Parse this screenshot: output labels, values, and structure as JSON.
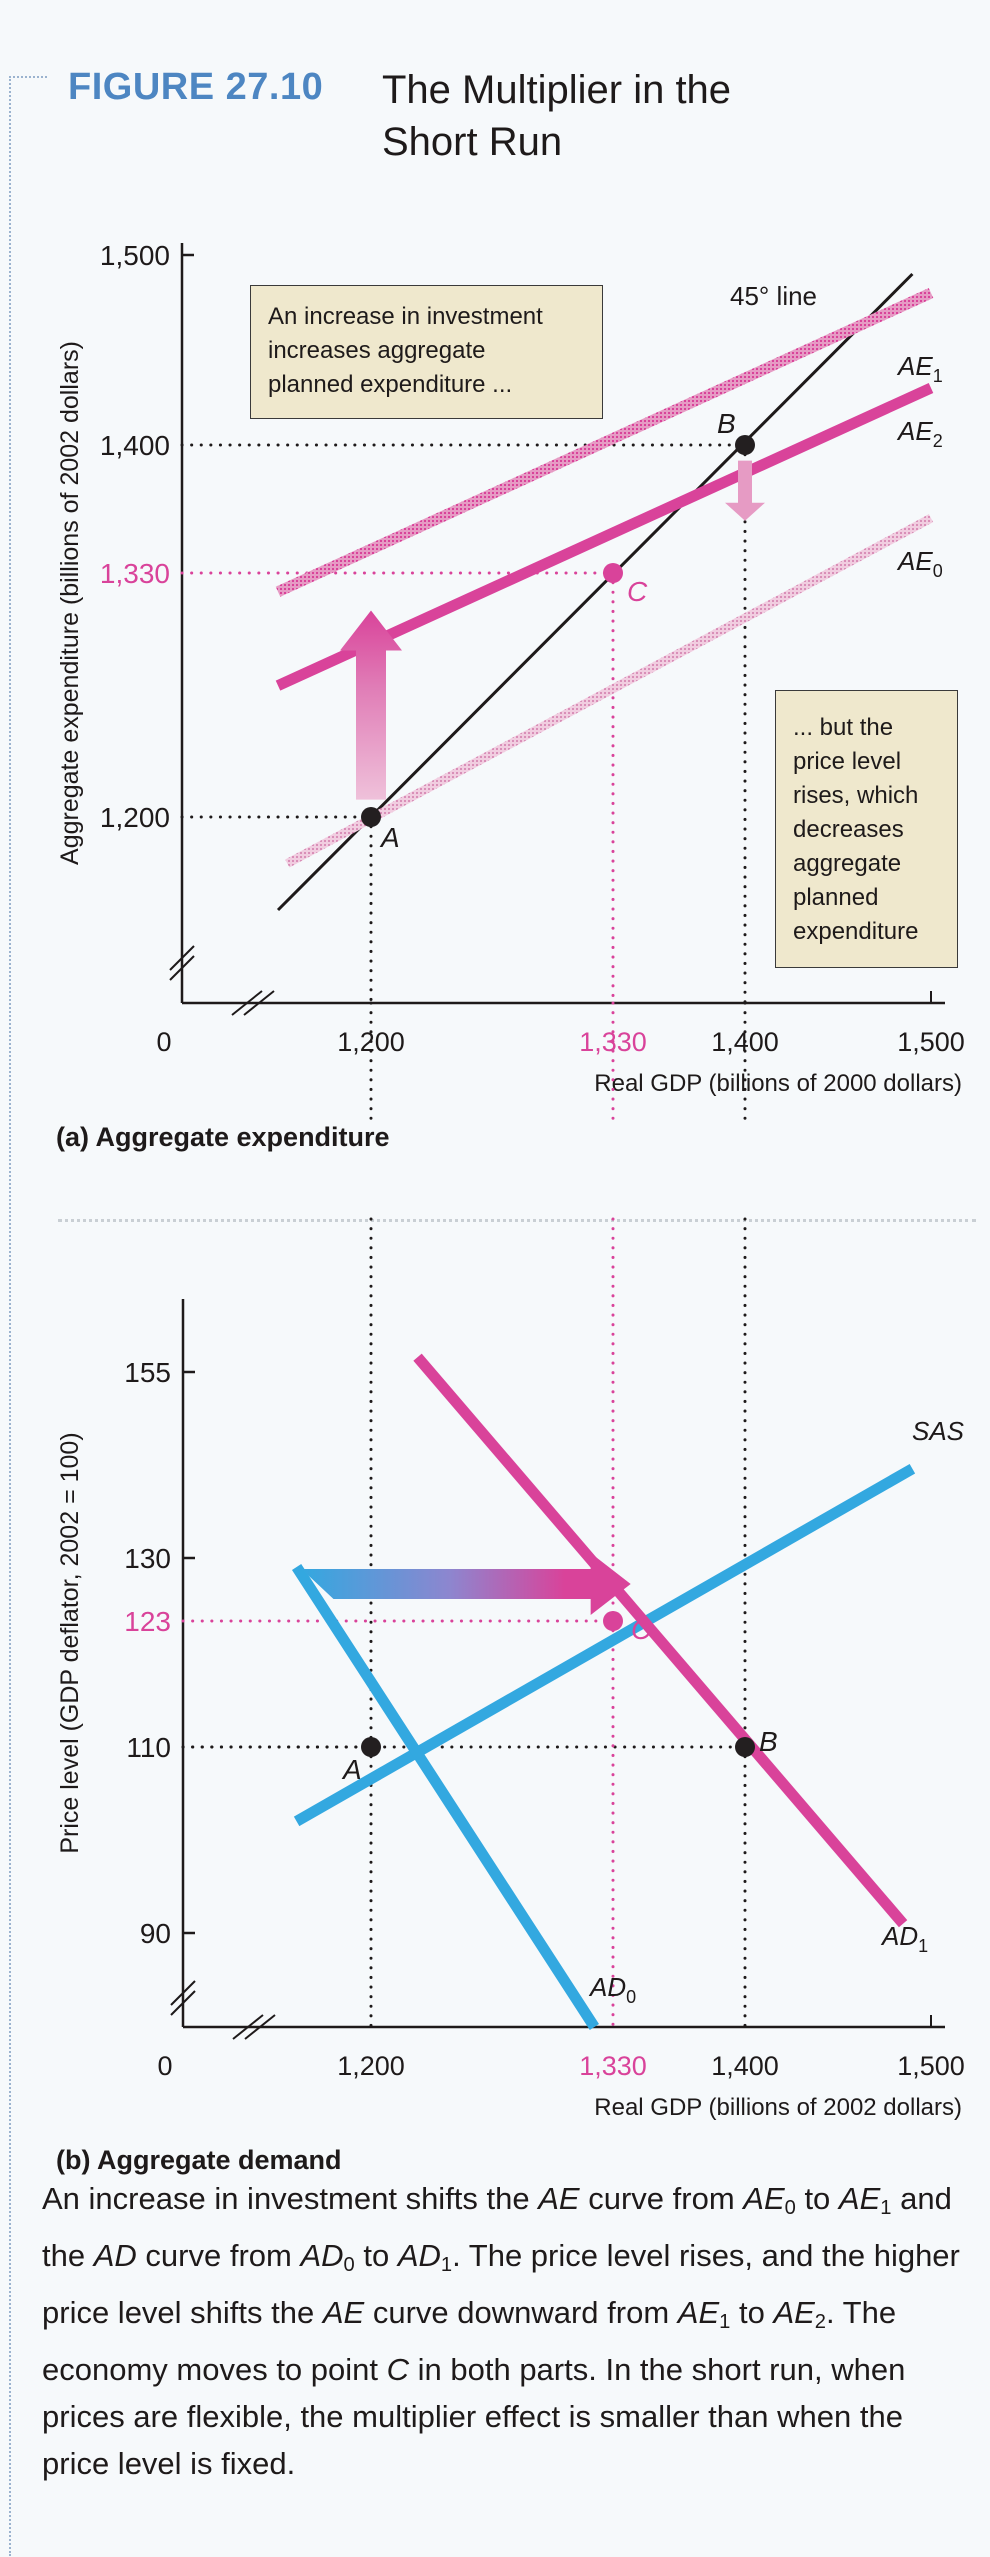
{
  "figure": {
    "number": "FIGURE 27.10",
    "title": "The Multiplier in the Short Run",
    "title_line1": "The Multiplier in the",
    "title_line2": "Short Run",
    "colors": {
      "number": "#4d86c2",
      "magenta": "#d9439a",
      "magenta_light": "#e69bc4",
      "magenta_pale": "#eab8d3",
      "blue": "#33a8e0",
      "black": "#1e1a1a",
      "note_bg": "#efe8cd"
    }
  },
  "chart_data": [
    {
      "id": "panel-a",
      "type": "line",
      "panel_label": "(a) Aggregate expenditure",
      "xlabel": "Real GDP (billions of 2000 dollars)",
      "ylabel": "Aggregate expenditure (billions of 2002 dollars)",
      "xlim": [
        1150,
        1500
      ],
      "ylim": [
        1150,
        1500
      ],
      "axis_breaks": true,
      "origin_label": "0",
      "x_ticks": [
        {
          "value": 1200,
          "label": "1,200",
          "highlight": false
        },
        {
          "value": 1330,
          "label": "1,330",
          "highlight": true
        },
        {
          "value": 1400,
          "label": "1,400",
          "highlight": false
        },
        {
          "value": 1500,
          "label": "1,500",
          "highlight": false
        }
      ],
      "y_ticks": [
        {
          "value": 1200,
          "label": "1,200",
          "highlight": false
        },
        {
          "value": 1330,
          "label": "1,330",
          "highlight": true
        },
        {
          "value": 1400,
          "label": "1,400",
          "highlight": false
        },
        {
          "value": 1500,
          "label": "1,500",
          "highlight": false
        }
      ],
      "series": [
        {
          "name": "45° line",
          "label": "45° line",
          "style": "black",
          "points": [
            [
              1150,
              1150
            ],
            [
              1490,
              1490
            ]
          ]
        },
        {
          "name": "AE1",
          "label": "AE",
          "sub": "1",
          "style": "magenta-light",
          "points": [
            [
              1150,
              1320
            ],
            [
              1500,
              1480
            ]
          ]
        },
        {
          "name": "AE2",
          "label": "AE",
          "sub": "2",
          "style": "magenta",
          "points": [
            [
              1150,
              1270
            ],
            [
              1500,
              1430
            ]
          ]
        },
        {
          "name": "AE0",
          "label": "AE",
          "sub": "0",
          "style": "magenta-pale",
          "points": [
            [
              1155,
              1175
            ],
            [
              1500,
              1360
            ]
          ]
        }
      ],
      "points": [
        {
          "name": "A",
          "x": 1200,
          "y": 1200,
          "color": "black"
        },
        {
          "name": "B",
          "x": 1400,
          "y": 1400,
          "color": "black"
        },
        {
          "name": "C",
          "x": 1330,
          "y": 1330,
          "color": "magenta"
        }
      ],
      "arrows": [
        {
          "name": "upward-shift-arrow",
          "from": [
            1200,
            1205
          ],
          "to": [
            1200,
            1310
          ],
          "direction": "up"
        },
        {
          "name": "downward-shift-arrow",
          "from": [
            1400,
            1398
          ],
          "to": [
            1400,
            1375
          ],
          "direction": "down"
        }
      ],
      "annotations": [
        {
          "id": "note1",
          "lines": [
            "An increase in investment",
            "increases aggregate",
            "planned expenditure  ..."
          ]
        },
        {
          "id": "note2",
          "lines": [
            "... but the",
            "price level",
            "rises, which",
            "decreases",
            "aggregate",
            "planned",
            "expenditure"
          ]
        }
      ]
    },
    {
      "id": "panel-b",
      "type": "line",
      "panel_label": "(b) Aggregate demand",
      "xlabel": "Real GDP (billions of 2002 dollars)",
      "ylabel": "Price level (GDP deflator, 2002 = 100)",
      "xlim": [
        1150,
        1500
      ],
      "ylim": [
        80,
        160
      ],
      "axis_breaks": true,
      "origin_label": "0",
      "x_ticks": [
        {
          "value": 1200,
          "label": "1,200",
          "highlight": false
        },
        {
          "value": 1330,
          "label": "1,330",
          "highlight": true
        },
        {
          "value": 1400,
          "label": "1,400",
          "highlight": false
        },
        {
          "value": 1500,
          "label": "1,500",
          "highlight": false
        }
      ],
      "y_ticks": [
        {
          "value": 90,
          "label": "90",
          "highlight": false
        },
        {
          "value": 110,
          "label": "110",
          "highlight": false
        },
        {
          "value": 123,
          "label": "123",
          "highlight": true
        },
        {
          "value": 130,
          "label": "130",
          "highlight": false
        },
        {
          "value": 155,
          "label": "155",
          "highlight": false
        }
      ],
      "series": [
        {
          "name": "SAS",
          "label": "SAS",
          "sub": "",
          "style": "blue",
          "points": [
            [
              1160,
              102
            ],
            [
              1490,
              142
            ]
          ]
        },
        {
          "name": "AD0",
          "label": "AD",
          "sub": "0",
          "style": "blue",
          "points": [
            [
              1160,
              129
            ],
            [
              1320,
              80
            ]
          ]
        },
        {
          "name": "AD1",
          "label": "AD",
          "sub": "1",
          "style": "magenta",
          "points": [
            [
              1225,
              157
            ],
            [
              1485,
              91
            ]
          ]
        }
      ],
      "points": [
        {
          "name": "A",
          "x": 1200,
          "y": 110,
          "color": "black"
        },
        {
          "name": "B",
          "x": 1400,
          "y": 110,
          "color": "black"
        },
        {
          "name": "C",
          "x": 1330,
          "y": 123,
          "color": "magenta"
        }
      ],
      "arrows": [
        {
          "name": "rightward-shift-arrow",
          "from": [
            1168,
            128
          ],
          "to": [
            1318,
            128
          ],
          "direction": "right"
        }
      ]
    }
  ],
  "caption": {
    "segments": [
      {
        "t": "An increase in investment shifts the "
      },
      {
        "t": "AE",
        "i": true
      },
      {
        "t": " curve from "
      },
      {
        "t": "AE",
        "i": true,
        "sub": "0"
      },
      {
        "t": " to "
      },
      {
        "t": "AE",
        "i": true,
        "sub": "1"
      },
      {
        "t": " and the "
      },
      {
        "t": "AD",
        "i": true
      },
      {
        "t": " curve from "
      },
      {
        "t": "AD",
        "i": true,
        "sub": "0"
      },
      {
        "t": " to "
      },
      {
        "t": "AD",
        "i": true,
        "sub": "1"
      },
      {
        "t": ". The price level rises, and the higher price level shifts the "
      },
      {
        "t": "AE",
        "i": true
      },
      {
        "t": " curve down­ward from "
      },
      {
        "t": "AE",
        "i": true,
        "sub": "1"
      },
      {
        "t": " to "
      },
      {
        "t": "AE",
        "i": true,
        "sub": "2"
      },
      {
        "t": ". The economy moves to point "
      },
      {
        "t": "C",
        "i": true
      },
      {
        "t": " in both parts. In the short run, when prices are flexible, the multiplier effect is smaller than when the price level is fixed."
      }
    ]
  }
}
